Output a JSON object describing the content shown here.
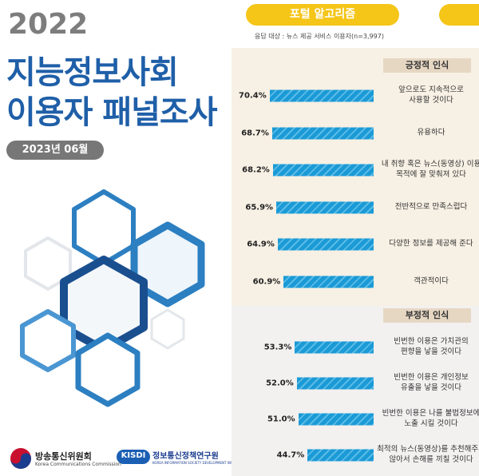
{
  "cover": {
    "year": "2022",
    "title_line1": "지능정보사회",
    "title_line2": "이용자 패널조사",
    "date": "2023년 06월",
    "org1": "방송통신위원회",
    "org1_en": "Korea Communications Commission",
    "org2_logo": "KISDI",
    "org2": "정보통신정책연구원",
    "org2_en": "KOREA INFORMATION SOCIETY DEVELOPMENT INSTITUTE"
  },
  "chart_data": {
    "type": "bar",
    "title": "포털 알고리즘",
    "subtitle": "응답 대상 : 뉴스 제공 서비스 이용자(n=3,997)",
    "color": "#1a9ad6",
    "groups": [
      {
        "name": "긍정적 인식",
        "categories": [
          "앞으로도 지속적으로\n사용할 것이다",
          "유용하다",
          "내 취향 혹은 뉴스(동영상) 이용\n목적에 잘 맞춰져 있다",
          "전반적으로 만족스럽다",
          "다양한 정보를 제공해 준다",
          "객관적이다"
        ],
        "values": [
          70.4,
          68.7,
          68.2,
          65.9,
          64.9,
          60.9
        ],
        "value_labels": [
          "70.4%",
          "68.7%",
          "68.2%",
          "65.9%",
          "64.9%",
          "60.9%"
        ]
      },
      {
        "name": "부정적 인식",
        "categories": [
          "빈번한 이용은 가치관의\n편향을 낳을 것이다",
          "빈번한 이용은 개인정보\n유출을 낳을 것이다",
          "빈번한 이용은 나를 불법정보에\n노출 시킬 것이다",
          "최적의 뉴스(동영상)를 추천해주지\n않아서 손해를 끼칠 것이다"
        ],
        "values": [
          53.3,
          52.0,
          51.0,
          44.7
        ],
        "value_labels": [
          "53.3%",
          "52.0%",
          "51.0%",
          "44.7%"
        ]
      }
    ]
  }
}
